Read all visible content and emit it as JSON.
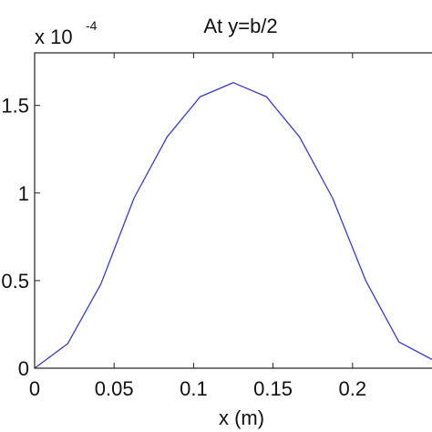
{
  "chart_data": {
    "type": "line",
    "title": "At y=b/2",
    "xlabel": "x (m)",
    "ylabel": "",
    "scale_text": "x 10",
    "scale_exponent": "-4",
    "xlim": [
      0,
      0.25
    ],
    "ylim": [
      0,
      1.8
    ],
    "grid": false,
    "xticks": [
      0,
      0.05,
      0.1,
      0.15,
      0.2
    ],
    "xtick_labels": [
      "0",
      "0.05",
      "0.1",
      "0.15",
      "0.2"
    ],
    "yticks": [
      0,
      0.5,
      1,
      1.5
    ],
    "ytick_labels": [
      "0",
      "0.5",
      "1",
      "1.5"
    ],
    "series": [
      {
        "color": "#3a3acc",
        "x": [
          0,
          0.0208,
          0.0417,
          0.0625,
          0.0833,
          0.1042,
          0.125,
          0.1458,
          0.1667,
          0.1875,
          0.2083,
          0.2292,
          0.25
        ],
        "y": [
          0,
          0.14,
          0.48,
          0.97,
          1.32,
          1.55,
          1.63,
          1.55,
          1.32,
          0.97,
          0.5,
          0.15,
          0.05
        ]
      }
    ]
  }
}
